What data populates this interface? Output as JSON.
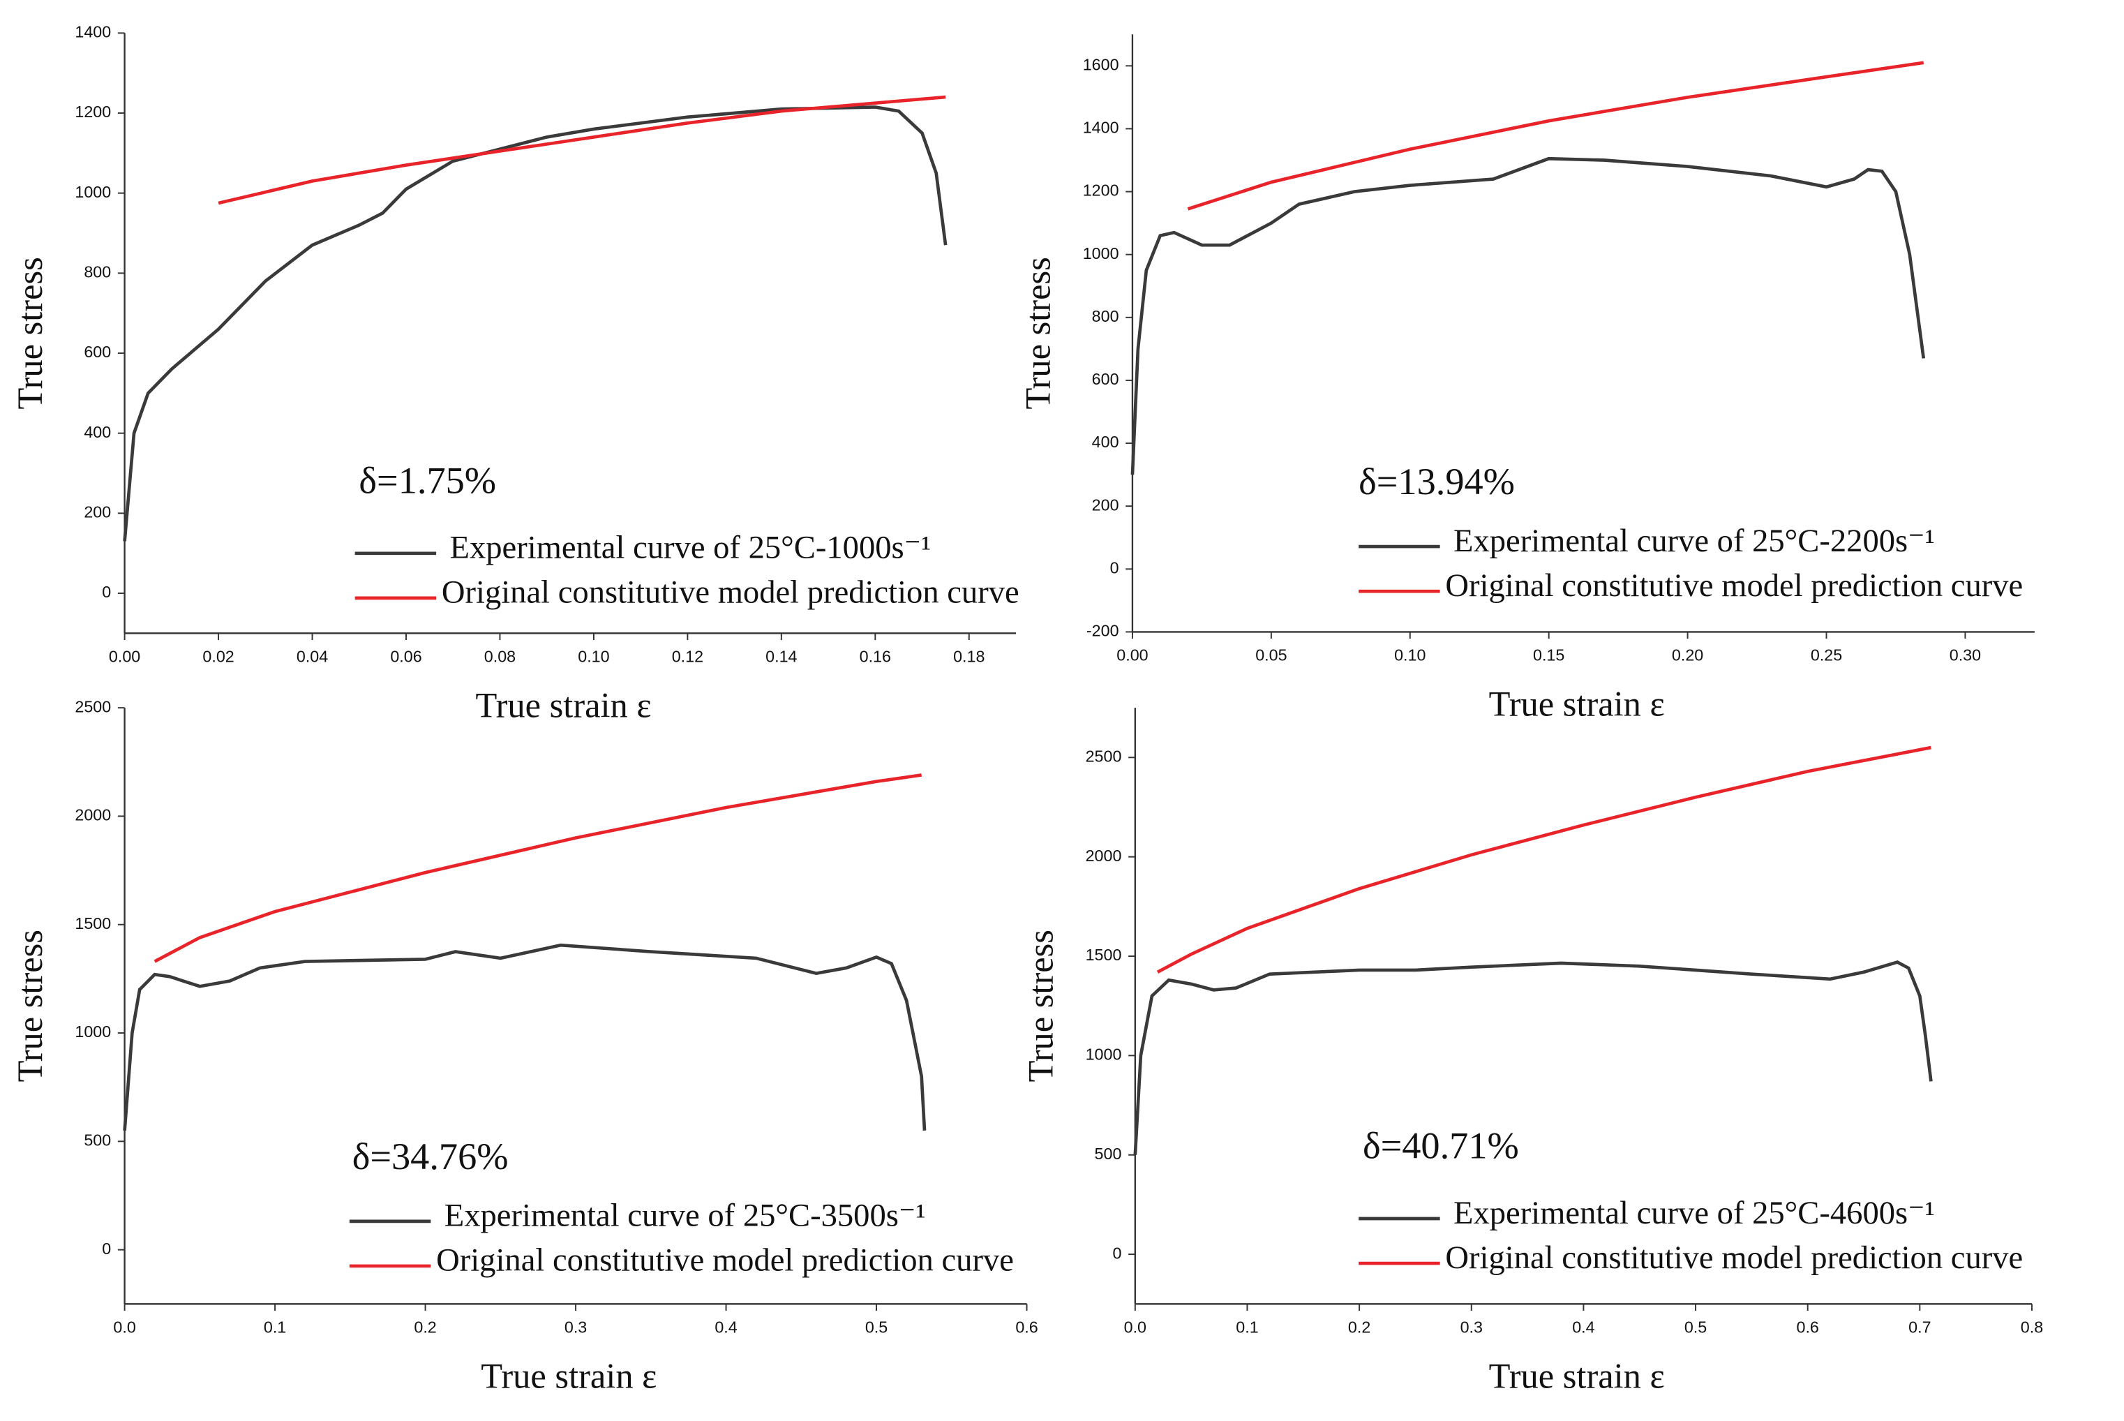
{
  "chart_data": [
    {
      "type": "line",
      "xlabel": "True strain ε",
      "ylabel": "True stress",
      "annotation": "δ=1.75%",
      "xlim": [
        0,
        0.19
      ],
      "ylim": [
        -100,
        1400
      ],
      "xticks": [
        {
          "value": 0,
          "label": "0.00"
        },
        0.02,
        0.04,
        0.06,
        0.08,
        {
          "value": 0.1,
          "label": "0.10"
        },
        0.12,
        0.14,
        0.16,
        0.18
      ],
      "yticks": [
        0,
        200,
        400,
        600,
        800,
        1000,
        1200,
        1400
      ],
      "series": [
        {
          "name": "Experimental curve of 25°C-1000s⁻¹",
          "color": "#3a3a3a",
          "x": [
            0,
            0.002,
            0.005,
            0.01,
            0.015,
            0.02,
            0.03,
            0.04,
            0.05,
            0.055,
            0.06,
            0.07,
            0.08,
            0.09,
            0.1,
            0.12,
            0.14,
            0.16,
            0.165,
            0.17,
            0.173,
            0.175
          ],
          "values": [
            130,
            400,
            500,
            560,
            610,
            660,
            780,
            870,
            920,
            950,
            1010,
            1080,
            1110,
            1140,
            1160,
            1190,
            1210,
            1215,
            1205,
            1150,
            1050,
            870
          ]
        },
        {
          "name": "Original constitutive model prediction curve",
          "color": "#e8242a",
          "x": [
            0.02,
            0.04,
            0.06,
            0.08,
            0.1,
            0.12,
            0.14,
            0.16,
            0.175
          ],
          "values": [
            975,
            1030,
            1070,
            1105,
            1140,
            1175,
            1205,
            1225,
            1240
          ]
        }
      ]
    },
    {
      "type": "line",
      "xlabel": "True strain ε",
      "ylabel": "True stress",
      "annotation": "δ=13.94%",
      "xlim": [
        0,
        0.325
      ],
      "ylim": [
        -200,
        1700
      ],
      "xticks": [
        {
          "value": 0,
          "label": "0.00"
        },
        0.05,
        {
          "value": 0.1,
          "label": "0.10"
        },
        0.15,
        {
          "value": 0.2,
          "label": "0.20"
        },
        0.25,
        {
          "value": 0.3,
          "label": "0.30"
        }
      ],
      "yticks": [
        -200,
        0,
        200,
        400,
        600,
        800,
        1000,
        1200,
        1400,
        1600
      ],
      "series": [
        {
          "name": "Experimental curve of 25°C-2200s⁻¹",
          "color": "#3a3a3a",
          "x": [
            0,
            0.002,
            0.005,
            0.01,
            0.015,
            0.025,
            0.035,
            0.05,
            0.06,
            0.08,
            0.1,
            0.13,
            0.15,
            0.17,
            0.2,
            0.23,
            0.25,
            0.26,
            0.265,
            0.27,
            0.275,
            0.28,
            0.285
          ],
          "values": [
            300,
            700,
            950,
            1060,
            1070,
            1030,
            1030,
            1100,
            1160,
            1200,
            1220,
            1240,
            1305,
            1300,
            1280,
            1250,
            1215,
            1240,
            1270,
            1265,
            1200,
            1000,
            670
          ]
        },
        {
          "name": "Original constitutive model prediction curve",
          "color": "#e8242a",
          "x": [
            0.02,
            0.05,
            0.1,
            0.15,
            0.2,
            0.25,
            0.285
          ],
          "values": [
            1145,
            1230,
            1335,
            1425,
            1500,
            1565,
            1610
          ]
        }
      ]
    },
    {
      "type": "line",
      "xlabel": "True strain ε",
      "ylabel": "True stress",
      "annotation": "δ=34.76%",
      "xlim": [
        0,
        0.6
      ],
      "ylim": [
        -250,
        2500
      ],
      "xticks": [
        {
          "value": 0,
          "label": "0.0"
        },
        0.1,
        0.2,
        0.3,
        0.4,
        0.5,
        0.6
      ],
      "yticks": [
        0,
        500,
        1000,
        1500,
        2000,
        2500
      ],
      "series": [
        {
          "name": "Experimental curve of 25°C-3500s⁻¹",
          "color": "#3a3a3a",
          "x": [
            0,
            0.005,
            0.01,
            0.02,
            0.03,
            0.05,
            0.07,
            0.09,
            0.12,
            0.2,
            0.22,
            0.25,
            0.29,
            0.35,
            0.42,
            0.46,
            0.48,
            0.5,
            0.51,
            0.52,
            0.53,
            0.532
          ],
          "values": [
            550,
            1000,
            1200,
            1270,
            1260,
            1215,
            1240,
            1300,
            1330,
            1340,
            1375,
            1345,
            1405,
            1375,
            1345,
            1275,
            1300,
            1350,
            1320,
            1150,
            800,
            550
          ]
        },
        {
          "name": "Original constitutive model prediction curve",
          "color": "#e8242a",
          "x": [
            0.02,
            0.05,
            0.1,
            0.2,
            0.3,
            0.4,
            0.5,
            0.53
          ],
          "values": [
            1330,
            1440,
            1560,
            1740,
            1900,
            2040,
            2160,
            2190
          ]
        }
      ]
    },
    {
      "type": "line",
      "xlabel": "True strain ε",
      "ylabel": "True stress",
      "annotation": "δ=40.71%",
      "xlim": [
        0,
        0.8
      ],
      "ylim": [
        -250,
        2750
      ],
      "xticks": [
        {
          "value": 0,
          "label": "0.0"
        },
        0.1,
        0.2,
        0.3,
        0.4,
        0.5,
        0.6,
        0.7,
        0.8
      ],
      "yticks": [
        0,
        500,
        1000,
        1500,
        2000,
        2500
      ],
      "series": [
        {
          "name": "Experimental curve of 25°C-4600s⁻¹",
          "color": "#3a3a3a",
          "x": [
            0,
            0.005,
            0.015,
            0.03,
            0.05,
            0.07,
            0.09,
            0.12,
            0.2,
            0.25,
            0.3,
            0.38,
            0.45,
            0.55,
            0.62,
            0.65,
            0.68,
            0.69,
            0.7,
            0.705,
            0.71
          ],
          "values": [
            500,
            1000,
            1300,
            1380,
            1360,
            1330,
            1340,
            1410,
            1430,
            1430,
            1445,
            1465,
            1450,
            1410,
            1385,
            1420,
            1470,
            1440,
            1300,
            1100,
            870
          ]
        },
        {
          "name": "Original constitutive model prediction curve",
          "color": "#e8242a",
          "x": [
            0.02,
            0.05,
            0.1,
            0.2,
            0.3,
            0.4,
            0.5,
            0.6,
            0.71
          ],
          "values": [
            1420,
            1510,
            1640,
            1840,
            2010,
            2160,
            2300,
            2430,
            2550
          ]
        }
      ]
    }
  ]
}
